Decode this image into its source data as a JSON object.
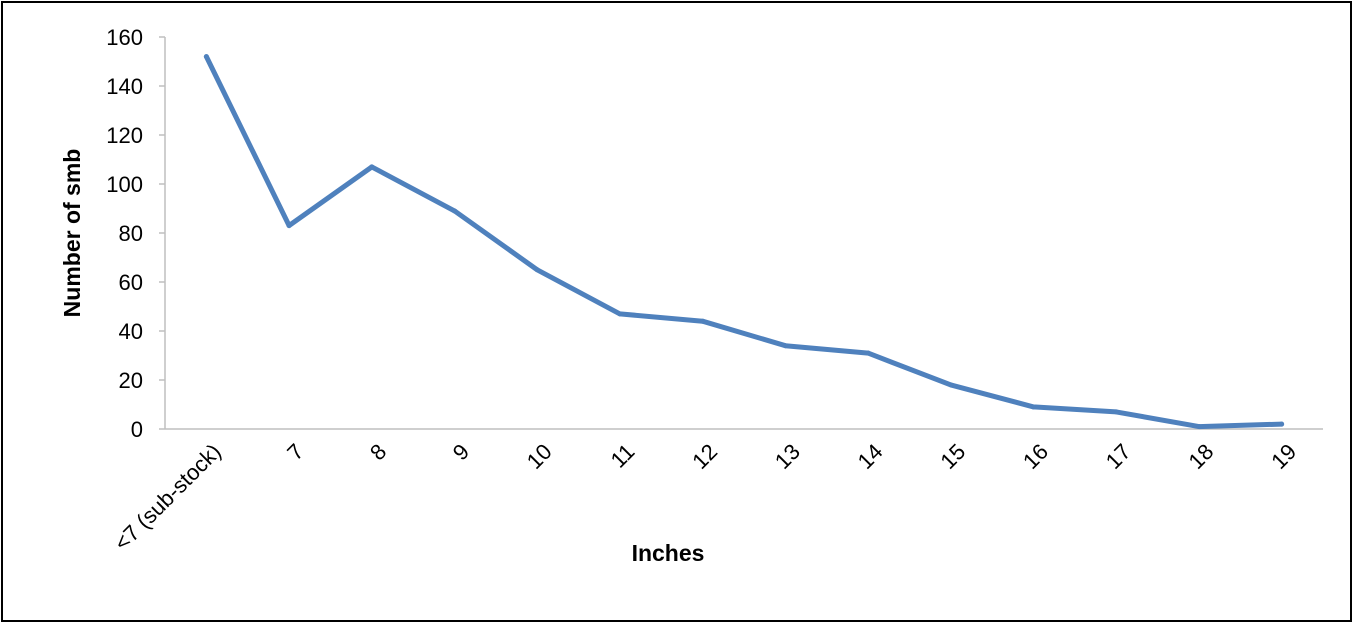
{
  "chart_data": {
    "type": "line",
    "title": "",
    "xlabel": "Inches",
    "ylabel": "Number of smb",
    "categories": [
      "<7 (sub-stock)",
      "7",
      "8",
      "9",
      "10",
      "11",
      "12",
      "13",
      "14",
      "15",
      "16",
      "17",
      "18",
      "19"
    ],
    "series": [
      {
        "values": [
          152,
          83,
          107,
          89,
          65,
          47,
          44,
          34,
          31,
          18,
          9,
          7,
          1,
          2
        ]
      }
    ],
    "ylim": [
      0,
      160
    ],
    "yticks": [
      0,
      20,
      40,
      60,
      80,
      100,
      120,
      140,
      160
    ],
    "grid": false,
    "legend": "none",
    "colors": {
      "line": "#4f81bd",
      "axis": "#bfbfbf",
      "text": "#000000"
    }
  }
}
